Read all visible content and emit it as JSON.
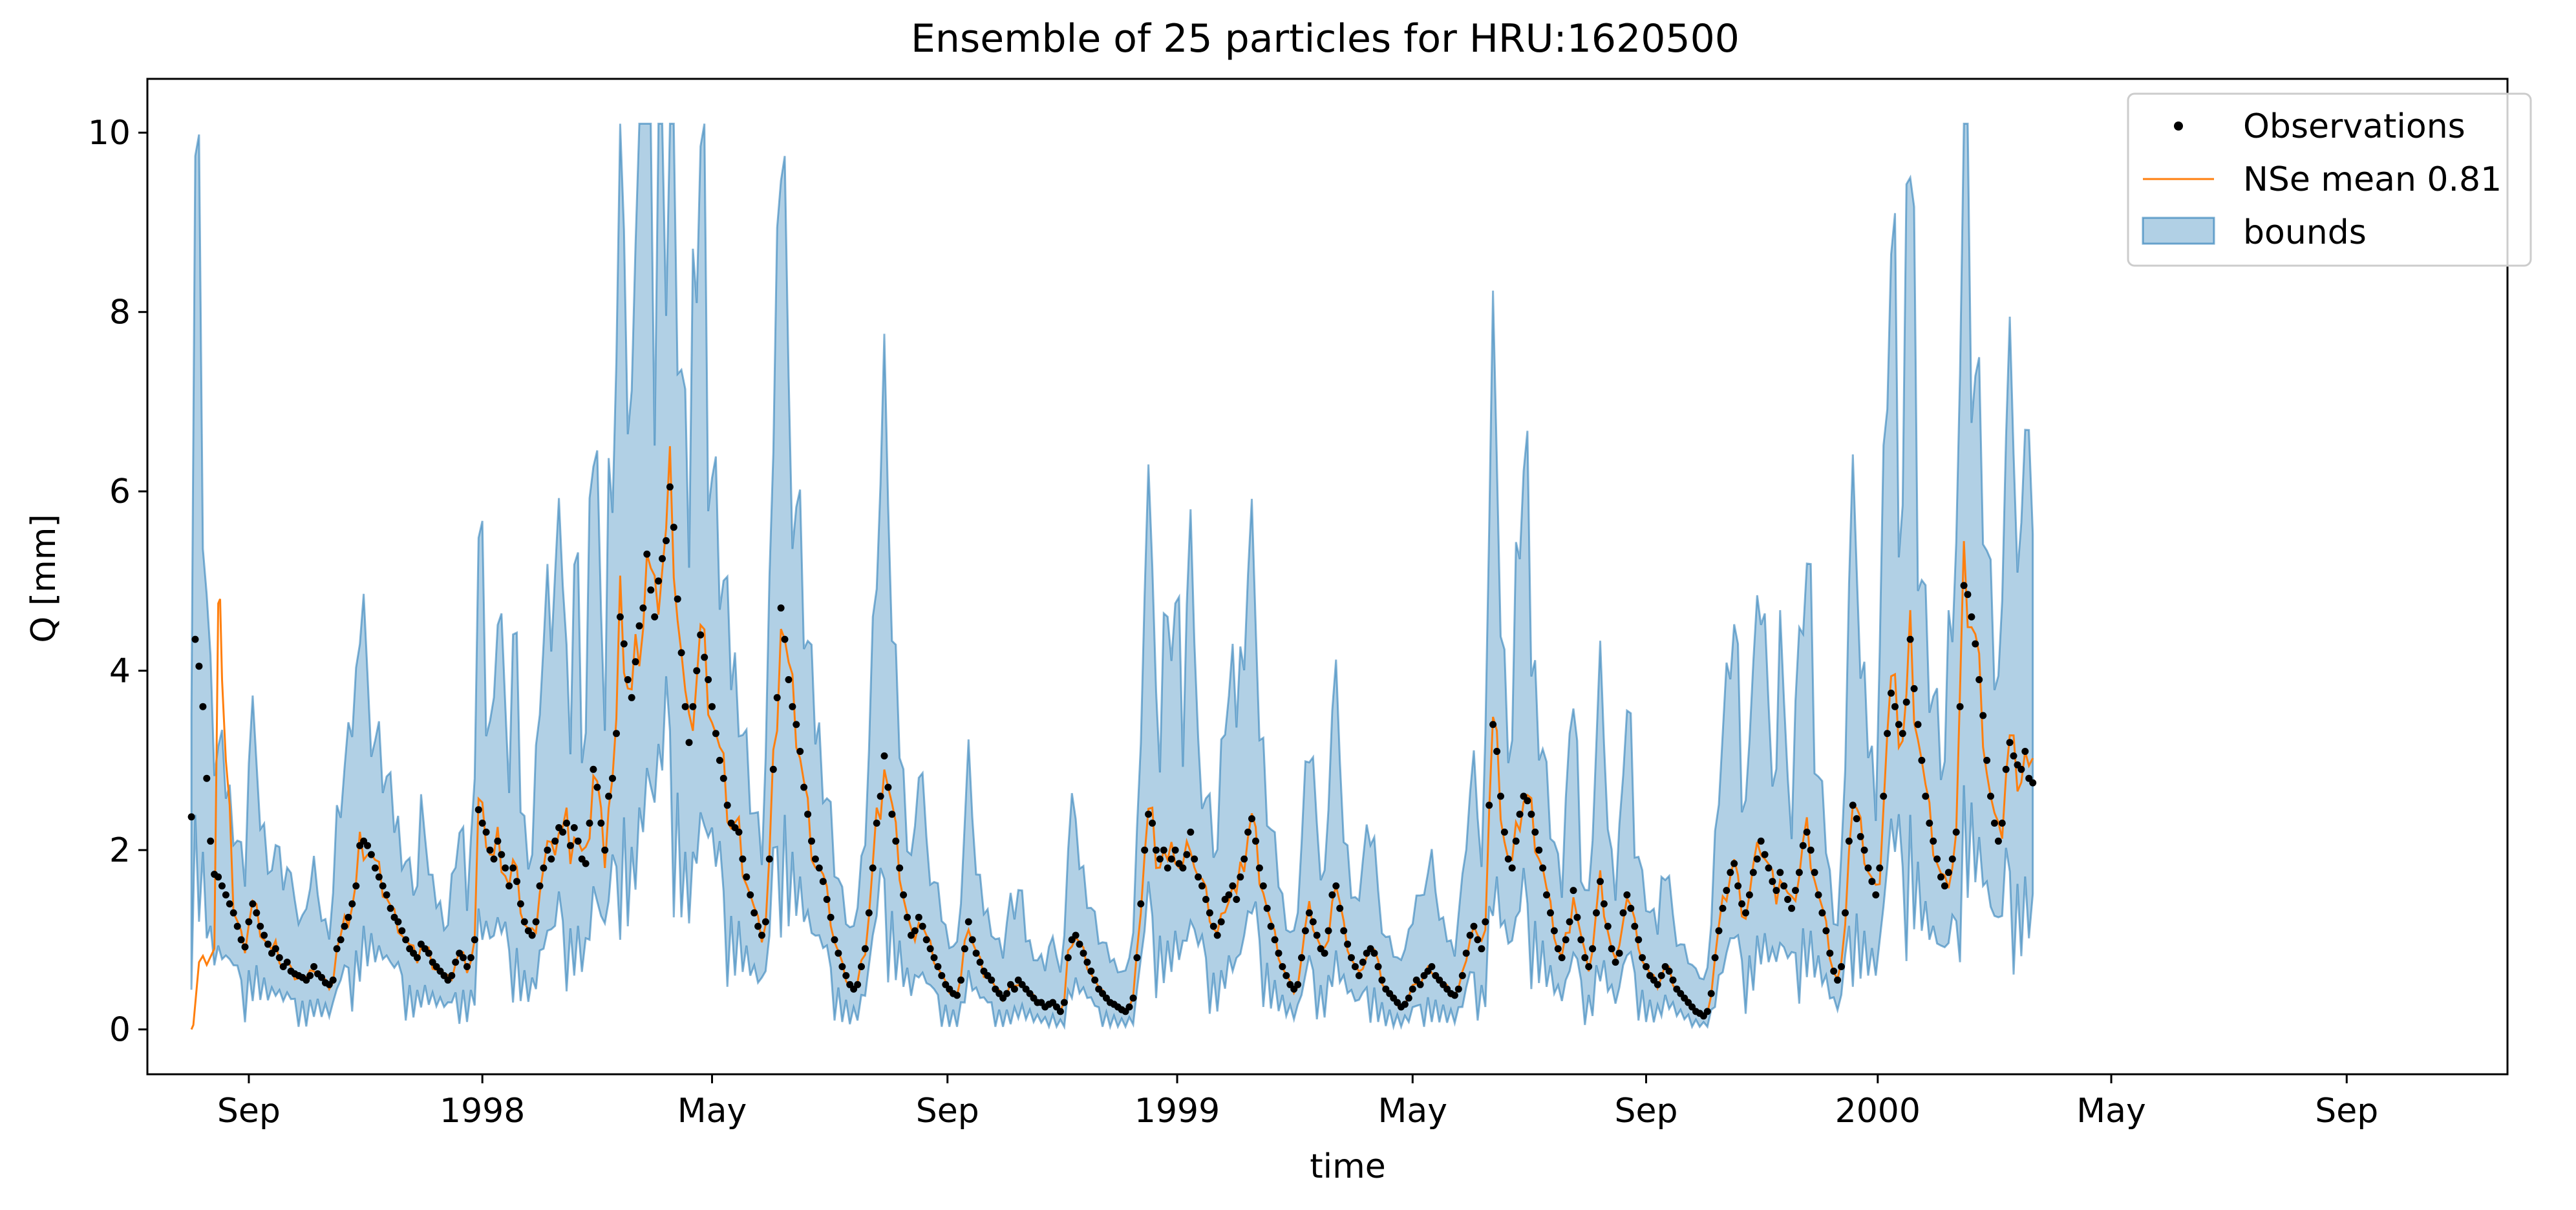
{
  "chart_data": {
    "type": "line",
    "title": "Ensemble of 25 particles for HRU:1620500",
    "xlabel": "time",
    "ylabel": "Q [mm]",
    "ylim": [
      -0.5,
      10.6
    ],
    "xlim": [
      -53,
      1180
    ],
    "x_unit": "days since 1997-09-01",
    "grid": false,
    "legend_position": "upper right",
    "yticks": [
      0,
      2,
      4,
      6,
      8,
      10
    ],
    "ytick_labels": [
      "0",
      "2",
      "4",
      "6",
      "8",
      "10"
    ],
    "xticks": [
      0,
      122,
      242,
      365,
      485,
      608,
      730,
      851,
      973,
      1096
    ],
    "xtick_labels": [
      "Sep",
      "1998",
      "May",
      "Sep",
      "1999",
      "May",
      "Sep",
      "2000",
      "May",
      "Sep"
    ],
    "series": [
      {
        "name": "Observations",
        "kind": "scatter-markers",
        "color": "#000000",
        "x_start": -30,
        "x_step": 2,
        "values": [
          2.37,
          4.35,
          4.05,
          3.6,
          2.8,
          2.1,
          1.73,
          1.7,
          1.6,
          1.5,
          1.4,
          1.3,
          1.15,
          1.0,
          0.92,
          1.2,
          1.4,
          1.3,
          1.15,
          1.05,
          0.95,
          0.85,
          0.9,
          0.8,
          0.7,
          0.75,
          0.65,
          0.62,
          0.6,
          0.58,
          0.55,
          0.6,
          0.7,
          0.62,
          0.58,
          0.52,
          0.5,
          0.55,
          0.9,
          1.0,
          1.15,
          1.25,
          1.4,
          1.6,
          2.05,
          2.1,
          2.05,
          1.95,
          1.8,
          1.7,
          1.6,
          1.5,
          1.35,
          1.25,
          1.2,
          1.1,
          1.0,
          0.9,
          0.85,
          0.8,
          0.95,
          0.9,
          0.85,
          0.75,
          0.7,
          0.65,
          0.6,
          0.55,
          0.6,
          0.75,
          0.85,
          0.8,
          0.7,
          0.8,
          1.0,
          2.45,
          2.3,
          2.2,
          2.0,
          1.9,
          2.1,
          1.95,
          1.8,
          1.6,
          1.8,
          1.65,
          1.4,
          1.2,
          1.1,
          1.05,
          1.2,
          1.6,
          1.8,
          2.0,
          1.9,
          2.1,
          2.25,
          2.2,
          2.3,
          2.05,
          2.25,
          2.1,
          1.9,
          1.85,
          2.3,
          2.9,
          2.7,
          2.3,
          2.0,
          2.6,
          2.8,
          3.3,
          4.6,
          4.3,
          3.9,
          3.7,
          4.1,
          4.5,
          4.7,
          5.3,
          4.9,
          4.6,
          5.0,
          5.25,
          5.45,
          6.05,
          5.6,
          4.8,
          4.2,
          3.6,
          3.2,
          3.6,
          4.0,
          4.4,
          4.15,
          3.9,
          3.6,
          3.3,
          3.0,
          2.8,
          2.5,
          2.3,
          2.25,
          2.2,
          1.9,
          1.7,
          1.5,
          1.3,
          1.15,
          1.05,
          1.2,
          1.9,
          2.9,
          3.7,
          4.7,
          4.35,
          3.9,
          3.6,
          3.4,
          3.1,
          2.7,
          2.4,
          2.1,
          1.9,
          1.8,
          1.65,
          1.45,
          1.25,
          1.0,
          0.85,
          0.7,
          0.6,
          0.5,
          0.45,
          0.5,
          0.7,
          0.9,
          1.3,
          1.8,
          2.3,
          2.6,
          3.05,
          2.7,
          2.4,
          2.1,
          1.8,
          1.5,
          1.25,
          1.05,
          1.1,
          1.25,
          1.15,
          1.0,
          0.9,
          0.8,
          0.7,
          0.6,
          0.5,
          0.45,
          0.4,
          0.38,
          0.55,
          0.9,
          1.2,
          1.0,
          0.85,
          0.75,
          0.65,
          0.6,
          0.55,
          0.45,
          0.4,
          0.35,
          0.4,
          0.5,
          0.45,
          0.55,
          0.5,
          0.45,
          0.4,
          0.35,
          0.3,
          0.3,
          0.25,
          0.28,
          0.3,
          0.25,
          0.2,
          0.3,
          0.8,
          1.0,
          1.05,
          0.95,
          0.85,
          0.75,
          0.65,
          0.55,
          0.45,
          0.4,
          0.35,
          0.3,
          0.28,
          0.25,
          0.22,
          0.2,
          0.25,
          0.35,
          0.8,
          1.4,
          2.0,
          2.4,
          2.3,
          2.0,
          1.9,
          2.0,
          1.8,
          1.9,
          2.0,
          1.85,
          1.8,
          1.95,
          2.2,
          1.9,
          1.7,
          1.6,
          1.45,
          1.3,
          1.15,
          1.05,
          1.2,
          1.45,
          1.5,
          1.6,
          1.45,
          1.7,
          1.9,
          2.2,
          2.35,
          2.1,
          1.8,
          1.6,
          1.35,
          1.15,
          1.0,
          0.85,
          0.7,
          0.6,
          0.5,
          0.45,
          0.5,
          0.8,
          1.1,
          1.3,
          1.2,
          1.05,
          0.9,
          0.85,
          1.1,
          1.5,
          1.6,
          1.35,
          1.1,
          0.95,
          0.8,
          0.7,
          0.6,
          0.75,
          0.85,
          0.9,
          0.85,
          0.7,
          0.55,
          0.45,
          0.4,
          0.35,
          0.3,
          0.25,
          0.28,
          0.35,
          0.45,
          0.55,
          0.5,
          0.6,
          0.65,
          0.7,
          0.6,
          0.55,
          0.5,
          0.45,
          0.4,
          0.38,
          0.45,
          0.6,
          0.85,
          1.05,
          1.15,
          1.0,
          0.9,
          1.2,
          2.5,
          3.4,
          3.1,
          2.6,
          2.2,
          1.9,
          1.8,
          2.1,
          2.4,
          2.6,
          2.55,
          2.4,
          2.2,
          2.0,
          1.8,
          1.5,
          1.3,
          1.1,
          0.9,
          0.8,
          1.0,
          1.2,
          1.55,
          1.25,
          1.0,
          0.8,
          0.7,
          0.9,
          1.3,
          1.65,
          1.4,
          1.15,
          0.9,
          0.75,
          0.85,
          1.3,
          1.5,
          1.35,
          1.15,
          1.0,
          0.8,
          0.7,
          0.6,
          0.55,
          0.5,
          0.6,
          0.7,
          0.65,
          0.55,
          0.45,
          0.4,
          0.35,
          0.3,
          0.25,
          0.2,
          0.18,
          0.15,
          0.2,
          0.4,
          0.8,
          1.1,
          1.35,
          1.55,
          1.75,
          1.85,
          1.6,
          1.4,
          1.3,
          1.5,
          1.75,
          1.9,
          2.1,
          1.95,
          1.8,
          1.65,
          1.55,
          1.75,
          1.6,
          1.45,
          1.35,
          1.55,
          1.75,
          2.05,
          2.2,
          2.0,
          1.75,
          1.5,
          1.3,
          1.1,
          0.85,
          0.65,
          0.55,
          0.7,
          1.3,
          2.1,
          2.5,
          2.35,
          2.15,
          2.0,
          1.8,
          1.65,
          1.5,
          1.8,
          2.6,
          3.3,
          3.75,
          3.6,
          3.4,
          3.3,
          3.65,
          4.35,
          3.8,
          3.4,
          3.0,
          2.6,
          2.3,
          2.1,
          1.9,
          1.7,
          1.6,
          1.75,
          1.9,
          2.2,
          3.6,
          4.95,
          4.85,
          4.6,
          4.3,
          3.9,
          3.5,
          3.0,
          2.6,
          2.3,
          2.1,
          2.3,
          2.9,
          3.2,
          3.05,
          2.95,
          2.9,
          3.1,
          2.8,
          2.75
        ]
      },
      {
        "name": "NSe mean 0.81",
        "kind": "line",
        "color": "#ff7f0e",
        "note": "ensemble mean; tracks the observations closely (NSe 0.81) except a low start and sharp early peak",
        "x": [
          -30,
          -29,
          -26,
          -24,
          -22,
          -18,
          -16,
          -15,
          -14,
          -12,
          -10
        ],
        "values": [
          0.0,
          0.05,
          0.75,
          0.82,
          0.72,
          0.9,
          4.75,
          4.8,
          3.9,
          3.0,
          2.5
        ]
      },
      {
        "name": "bounds",
        "kind": "band",
        "color": "#1f77b4",
        "opacity": 0.35,
        "note": "min/max envelope of the 25 particles; upper bound spikes follow the observed series (peak 10.1 near May 1998), lower bound dips to about 0.03 in recessions",
        "max_upper": 10.1,
        "min_lower": 0.03
      }
    ],
    "legend": [
      {
        "label": "Observations",
        "marker": "dot",
        "color": "#000000"
      },
      {
        "label": "NSe mean 0.81",
        "marker": "line",
        "color": "#ff7f0e"
      },
      {
        "label": "bounds",
        "marker": "patch",
        "color": "#1f77b4"
      }
    ]
  }
}
